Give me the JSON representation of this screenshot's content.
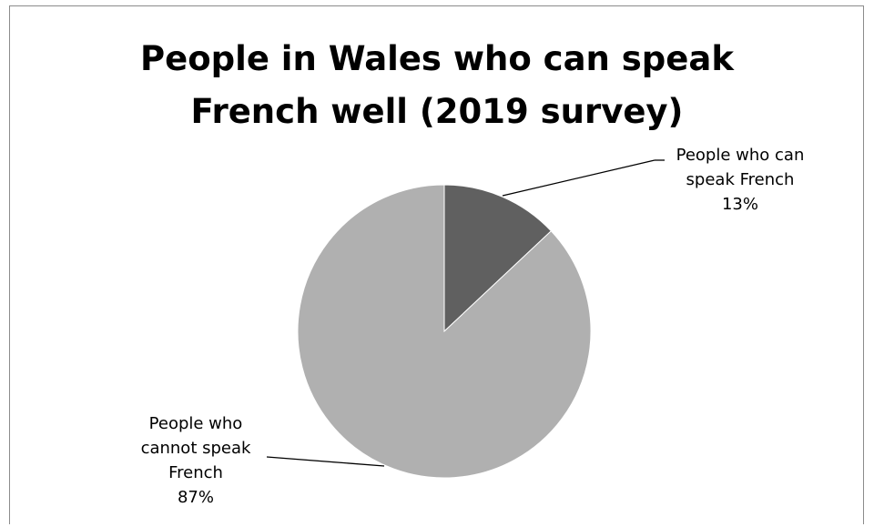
{
  "chart_data": {
    "type": "pie",
    "title_lines": [
      "People in Wales who can speak",
      "French well (2019 survey)"
    ],
    "slices": [
      {
        "label_lines": [
          "People who can",
          "speak French"
        ],
        "value": 13,
        "value_label": "13%",
        "color": "#606060"
      },
      {
        "label_lines": [
          "People who",
          "cannot speak",
          "French"
        ],
        "value": 87,
        "value_label": "87%",
        "color": "#b0b0b0"
      }
    ],
    "legend": "none",
    "grid": false
  }
}
